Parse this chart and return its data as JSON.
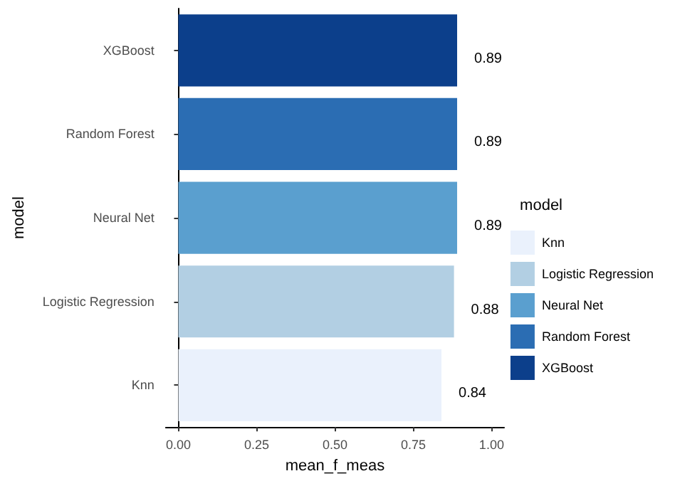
{
  "chart_data": {
    "type": "bar",
    "orientation": "horizontal",
    "stacked": true,
    "xlabel": "mean_f_meas",
    "ylabel": "model",
    "legend_title": "model",
    "categories": [
      "XGBoost",
      "Random Forest",
      "Neural Net",
      "Logistic Regression",
      "Knn"
    ],
    "series": [
      {
        "name": "Knn",
        "color": "#eaf1fc",
        "values": [
          null,
          null,
          null,
          null,
          0.84
        ]
      },
      {
        "name": "Logistic Regression",
        "color": "#b2cfe3",
        "values": [
          null,
          null,
          null,
          0.88,
          null
        ]
      },
      {
        "name": "Neural Net",
        "color": "#5a9fcf",
        "values": [
          null,
          null,
          0.89,
          null,
          null
        ]
      },
      {
        "name": "Random Forest",
        "color": "#2b6db3",
        "values": [
          null,
          0.89,
          null,
          null,
          null
        ]
      },
      {
        "name": "XGBoost",
        "color": "#0c3f8b",
        "values": [
          0.89,
          null,
          null,
          null,
          null
        ]
      }
    ],
    "xlim": [
      -0.04,
      1.04
    ],
    "xticks": [
      {
        "value": 0,
        "label": "0.00"
      },
      {
        "value": 0.25,
        "label": "0.25"
      },
      {
        "value": 0.5,
        "label": "0.50"
      },
      {
        "value": 0.75,
        "label": "0.75"
      },
      {
        "value": 1,
        "label": "1.00"
      }
    ],
    "data_labels": true,
    "grid": false,
    "legend": "right"
  }
}
